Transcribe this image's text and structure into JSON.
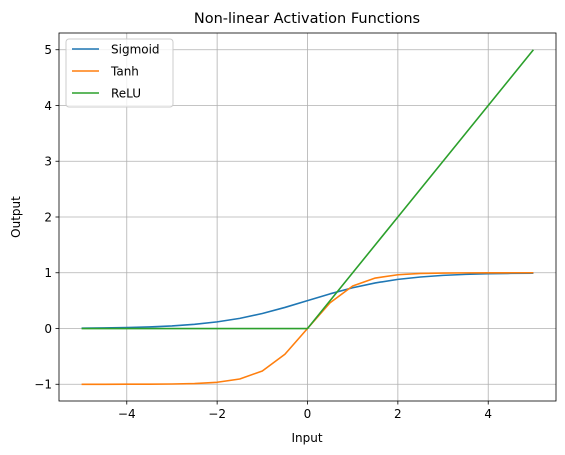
{
  "chart_data": {
    "type": "line",
    "title": "Non-linear Activation Functions",
    "xlabel": "Input",
    "ylabel": "Output",
    "xlim": [
      -5.5,
      5.5
    ],
    "ylim": [
      -1.3,
      5.3
    ],
    "xticks": [
      -4,
      -2,
      0,
      2,
      4
    ],
    "yticks": [
      -1,
      0,
      1,
      2,
      3,
      4,
      5
    ],
    "xtick_labels": [
      "−4",
      "−2",
      "0",
      "2",
      "4"
    ],
    "ytick_labels": [
      "−1",
      "0",
      "1",
      "2",
      "3",
      "4",
      "5"
    ],
    "grid": true,
    "legend_position": "top-left",
    "x": [
      -5,
      -4.5,
      -4,
      -3.5,
      -3,
      -2.5,
      -2,
      -1.5,
      -1,
      -0.5,
      0,
      0.5,
      1,
      1.5,
      2,
      2.5,
      3,
      3.5,
      4,
      4.5,
      5
    ],
    "series": [
      {
        "name": "Sigmoid",
        "color": "#1f77b4",
        "values": [
          0.007,
          0.011,
          0.018,
          0.029,
          0.047,
          0.076,
          0.119,
          0.182,
          0.269,
          0.378,
          0.5,
          0.622,
          0.731,
          0.818,
          0.881,
          0.924,
          0.953,
          0.971,
          0.982,
          0.989,
          0.993
        ]
      },
      {
        "name": "Tanh",
        "color": "#ff7f0e",
        "values": [
          -1.0,
          -1.0,
          -0.999,
          -0.998,
          -0.995,
          -0.987,
          -0.964,
          -0.905,
          -0.762,
          -0.462,
          0.0,
          0.462,
          0.762,
          0.905,
          0.964,
          0.987,
          0.995,
          0.998,
          0.999,
          1.0,
          1.0
        ]
      },
      {
        "name": "ReLU",
        "color": "#2ca02c",
        "values": [
          0,
          0,
          0,
          0,
          0,
          0,
          0,
          0,
          0,
          0,
          0,
          0.5,
          1,
          1.5,
          2,
          2.5,
          3,
          3.5,
          4,
          4.5,
          5
        ]
      }
    ]
  }
}
